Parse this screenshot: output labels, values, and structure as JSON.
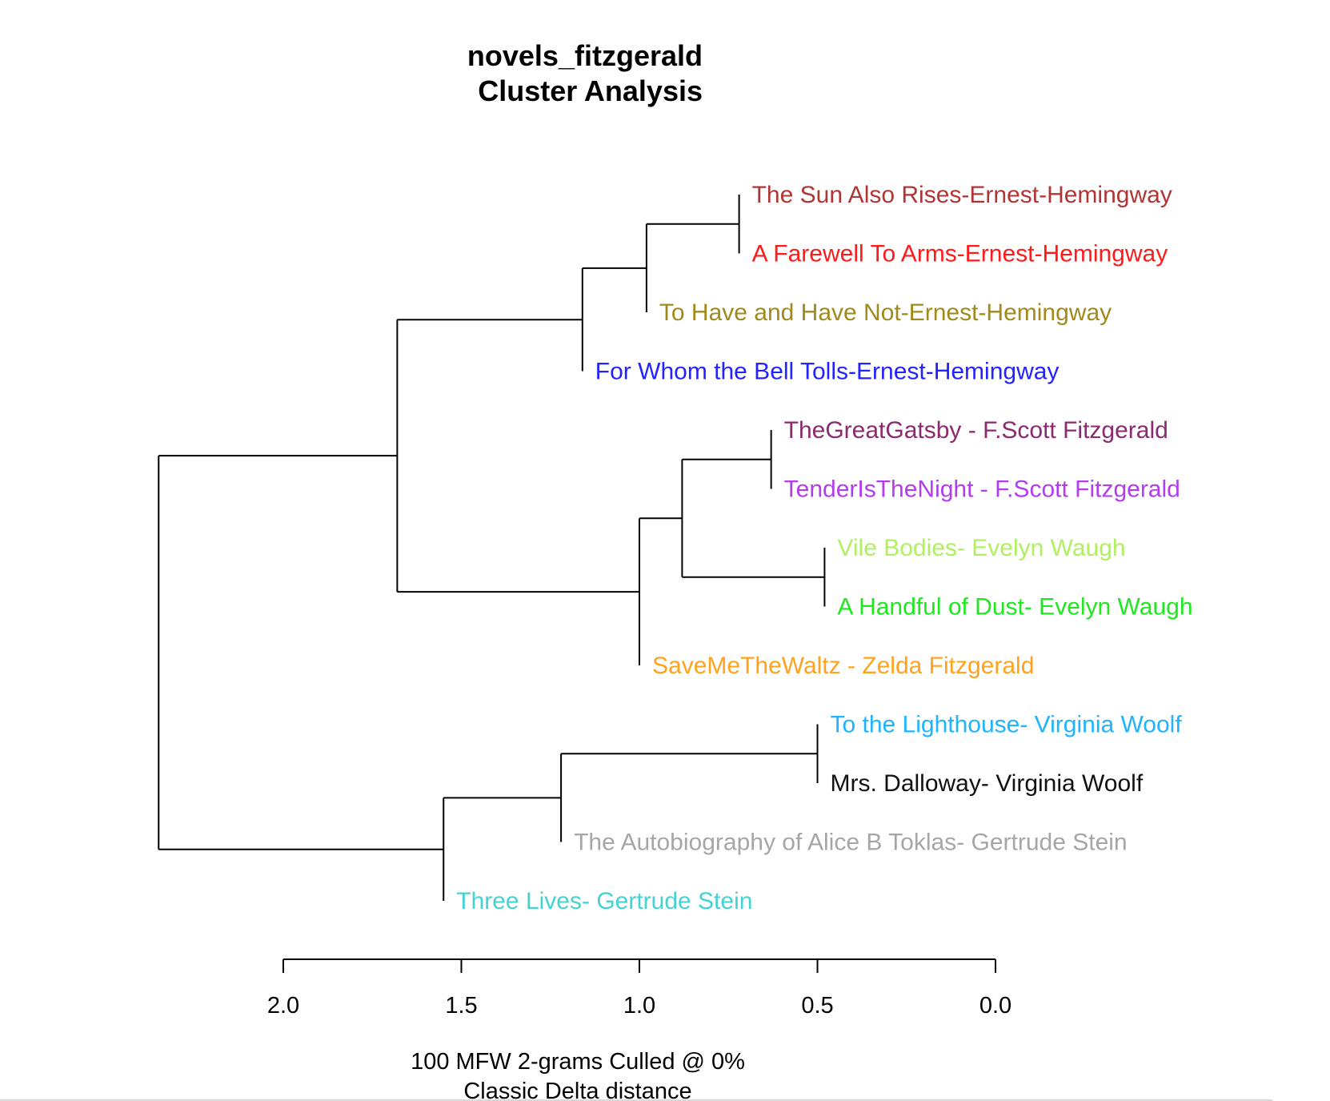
{
  "chart_data": {
    "type": "dendrogram",
    "title_line1": "novels_fitzgerald",
    "title_line2": "Cluster Analysis",
    "xlabel_line1": "100 MFW 2-grams Culled @ 0%",
    "xlabel_line2": "Classic Delta distance",
    "xticks": [
      "2.0",
      "1.5",
      "1.0",
      "0.5",
      "0.0"
    ],
    "xtick_values": [
      2.0,
      1.5,
      1.0,
      0.5,
      0.0
    ],
    "leaves": [
      {
        "label": "The Sun Also Rises-Ernest-Hemingway",
        "color": "#b03535"
      },
      {
        "label": "A Farewell To Arms-Ernest-Hemingway",
        "color": "#ff1a1a"
      },
      {
        "label": "To Have and Have Not-Ernest-Hemingway",
        "color": "#a08a1a"
      },
      {
        "label": "For Whom the Bell Tolls-Ernest-Hemingway",
        "color": "#2323ff"
      },
      {
        "label": "TheGreatGatsby - F.Scott Fitzgerald",
        "color": "#8b2a6e"
      },
      {
        "label": "TenderIsTheNight - F.Scott Fitzgerald",
        "color": "#b43cf0"
      },
      {
        "label": "Vile Bodies- Evelyn Waugh",
        "color": "#b0f060"
      },
      {
        "label": "A Handful of Dust- Evelyn Waugh",
        "color": "#1ee81e"
      },
      {
        "label": "SaveMeTheWaltz - Zelda Fitzgerald",
        "color": "#ffa21e"
      },
      {
        "label": "To the Lighthouse- Virginia Woolf",
        "color": "#1eb4ff"
      },
      {
        "label": "Mrs. Dalloway- Virginia Woolf",
        "color": "#111111"
      },
      {
        "label": "The Autobiography of Alice B Toklas- Gertrude Stein",
        "color": "#a6a6a6"
      },
      {
        "label": "Three Lives- Gertrude Stein",
        "color": "#46d2d2"
      }
    ],
    "merges": [
      {
        "id": "m1",
        "children": [
          "L0",
          "L1"
        ],
        "height": 0.72
      },
      {
        "id": "m2",
        "children": [
          "m1",
          "L2"
        ],
        "height": 0.98
      },
      {
        "id": "m3",
        "children": [
          "m2",
          "L3"
        ],
        "height": 1.16
      },
      {
        "id": "m4",
        "children": [
          "L4",
          "L5"
        ],
        "height": 0.63
      },
      {
        "id": "m5",
        "children": [
          "L6",
          "L7"
        ],
        "height": 0.48
      },
      {
        "id": "m6",
        "children": [
          "m4",
          "m5"
        ],
        "height": 0.88
      },
      {
        "id": "m7",
        "children": [
          "m6",
          "L8"
        ],
        "height": 1.0
      },
      {
        "id": "m8",
        "children": [
          "m3",
          "m7"
        ],
        "height": 1.68
      },
      {
        "id": "m9",
        "children": [
          "L9",
          "L10"
        ],
        "height": 0.5
      },
      {
        "id": "m10",
        "children": [
          "m9",
          "L11"
        ],
        "height": 1.22
      },
      {
        "id": "m11",
        "children": [
          "m10",
          "L12"
        ],
        "height": 1.55
      },
      {
        "id": "m12",
        "children": [
          "m8",
          "m11"
        ],
        "height": 2.35
      }
    ],
    "leaf_heights": {
      "L0": 0.72,
      "L1": 0.72,
      "L2": 0.98,
      "L3": 1.16,
      "L4": 0.63,
      "L5": 0.63,
      "L6": 0.48,
      "L7": 0.48,
      "L8": 1.0,
      "L9": 0.5,
      "L10": 0.5,
      "L11": 1.22,
      "L12": 1.55
    }
  }
}
